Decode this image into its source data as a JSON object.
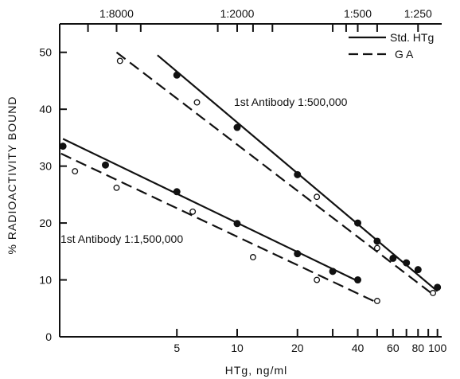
{
  "chart_data": {
    "type": "scatter",
    "title": "",
    "xlabel": "HTg, ng/ml",
    "ylabel": "% RADIOACTIVITY BOUND",
    "x_scale": "log",
    "xlim": [
      1.3,
      105
    ],
    "ylim": [
      0,
      55
    ],
    "x_ticks": [
      5,
      10,
      20,
      40,
      60,
      80,
      100
    ],
    "x_tick_labels": [
      "5",
      "10",
      "20",
      "40",
      "60",
      "80",
      "100"
    ],
    "x_minor_ticks": [
      30,
      50,
      70,
      90
    ],
    "y_ticks": [
      0,
      10,
      20,
      30,
      40,
      50
    ],
    "y_tick_labels": [
      "0",
      "10",
      "20",
      "30",
      "40",
      "50"
    ],
    "top_axis": {
      "ticks": [
        2.5,
        10,
        40,
        80
      ],
      "labels": [
        "1:8000",
        "1:2000",
        "1:500",
        "1:250"
      ],
      "minor_ticks": [
        1.8,
        3.3,
        8,
        12,
        15,
        30,
        35,
        50
      ]
    },
    "legend": {
      "position": "top-right",
      "entries": [
        {
          "label": "Std. HTg",
          "style": "solid"
        },
        {
          "label": "G A",
          "style": "dashed"
        }
      ]
    },
    "annotations": [
      {
        "text": "1st Antibody 1:500,000",
        "x": 7.5,
        "y": 42.5
      },
      {
        "text": "1st Antibody 1:1,500,000",
        "x": 1.32,
        "y": 16.8
      }
    ],
    "series": [
      {
        "name": "Std. HTg",
        "marker": "filled",
        "line": "solid",
        "points": [
          [
            5,
            46
          ],
          [
            10,
            36.8
          ],
          [
            20,
            28.5
          ],
          [
            40,
            20
          ],
          [
            50,
            16.8
          ],
          [
            60,
            13.8
          ],
          [
            70,
            13
          ],
          [
            80,
            11.8
          ],
          [
            100,
            8.7
          ]
        ],
        "fit": [
          [
            4,
            49.5
          ],
          [
            100,
            8
          ]
        ]
      },
      {
        "name": "G A",
        "marker": "open",
        "line": "dashed",
        "points": [
          [
            2.6,
            48.5
          ],
          [
            6.3,
            41.2
          ],
          [
            25,
            24.6
          ],
          [
            50,
            15.6
          ],
          [
            95,
            7.7
          ]
        ],
        "fit": [
          [
            2.5,
            50
          ],
          [
            97,
            7.2
          ]
        ]
      },
      {
        "name": "Std. HTg",
        "marker": "filled",
        "line": "solid",
        "points": [
          [
            1.35,
            33.5
          ],
          [
            2.2,
            30.2
          ],
          [
            5,
            25.5
          ],
          [
            10,
            19.9
          ],
          [
            20,
            14.6
          ],
          [
            30,
            11.5
          ],
          [
            40,
            10
          ]
        ],
        "fit": [
          [
            1.35,
            34.8
          ],
          [
            40,
            9.8
          ]
        ]
      },
      {
        "name": "G A",
        "marker": "open",
        "line": "dashed",
        "points": [
          [
            1.55,
            29.1
          ],
          [
            2.5,
            26.2
          ],
          [
            6,
            22
          ],
          [
            12,
            14
          ],
          [
            25,
            10
          ],
          [
            50,
            6.3
          ]
        ],
        "fit": [
          [
            1.32,
            32.2
          ],
          [
            50,
            6
          ]
        ]
      }
    ]
  }
}
